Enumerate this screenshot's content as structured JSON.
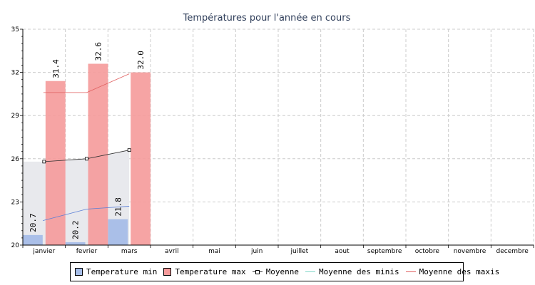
{
  "chart_data": {
    "type": "bar",
    "title": "Températures pour l'année en cours",
    "categories": [
      "janvier",
      "fevrier",
      "mars",
      "avril",
      "mai",
      "juin",
      "juillet",
      "aout",
      "septembre",
      "octobre",
      "novembre",
      "decembre"
    ],
    "ylim": [
      20,
      35
    ],
    "yticks": [
      20,
      23,
      26,
      29,
      32,
      35
    ],
    "grid": true,
    "legend_position": "bottom",
    "series": [
      {
        "name": "Temperature min",
        "kind": "bar",
        "color": "#a6bde8",
        "values": [
          20.7,
          20.2,
          21.8,
          null,
          null,
          null,
          null,
          null,
          null,
          null,
          null,
          null
        ],
        "labels": [
          "20.7",
          "20.2",
          "21.8"
        ]
      },
      {
        "name": "Temperature max",
        "kind": "bar",
        "color": "#f59a9a",
        "values": [
          31.4,
          32.6,
          32.0,
          null,
          null,
          null,
          null,
          null,
          null,
          null,
          null,
          null
        ],
        "labels": [
          "31.4",
          "32.6",
          "32.0"
        ]
      },
      {
        "name": "Moyenne",
        "kind": "line-marker",
        "color": "#333333",
        "values": [
          25.8,
          26.0,
          26.6,
          null,
          null,
          null,
          null,
          null,
          null,
          null,
          null,
          null
        ]
      },
      {
        "name": "Moyenne des minis",
        "kind": "line",
        "color": "#5b7fd6",
        "values": [
          21.7,
          22.5,
          22.7,
          null,
          null,
          null,
          null,
          null,
          null,
          null,
          null,
          null
        ]
      },
      {
        "name": "Moyenne des maxis",
        "kind": "line",
        "color": "#e06060",
        "values": [
          30.6,
          30.6,
          31.9,
          null,
          null,
          null,
          null,
          null,
          null,
          null,
          null,
          null
        ]
      }
    ],
    "area_fill_color": "#e8e9ed"
  }
}
